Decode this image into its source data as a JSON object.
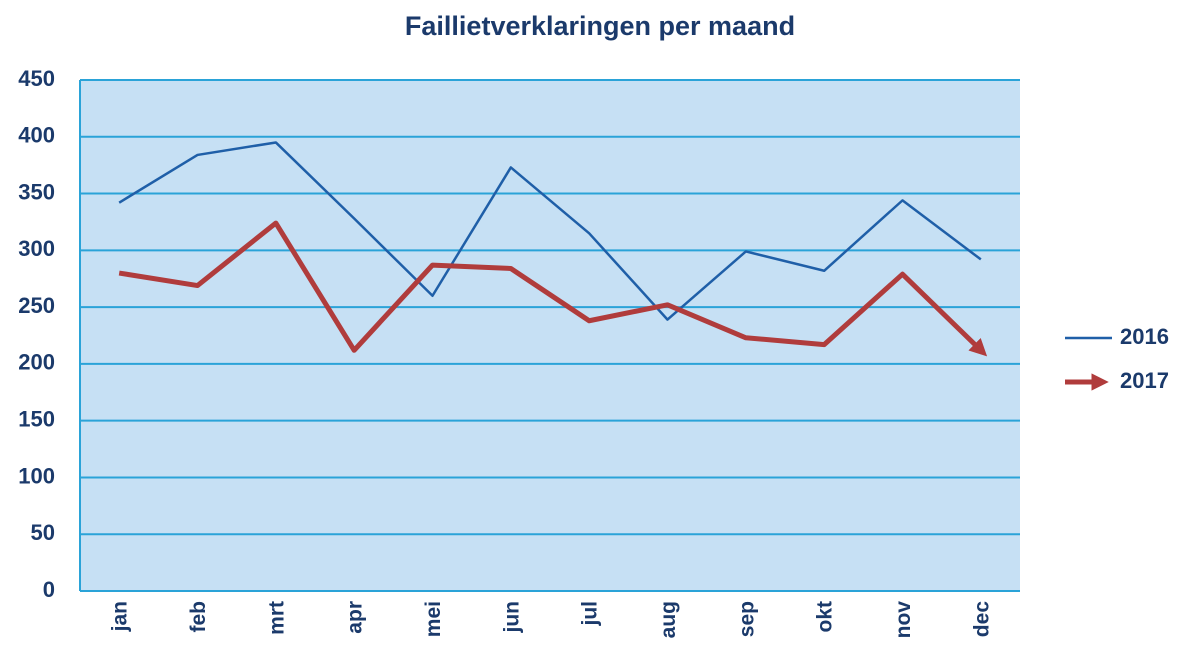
{
  "chart_data": {
    "type": "line",
    "title": "Faillietverklaringen per maand",
    "categories": [
      "jan",
      "feb",
      "mrt",
      "apr",
      "mei",
      "jun",
      "jul",
      "aug",
      "sep",
      "okt",
      "nov",
      "dec"
    ],
    "series": [
      {
        "name": "2016",
        "color": "#1f5fa8",
        "values": [
          342,
          384,
          395,
          328,
          260,
          373,
          315,
          239,
          299,
          282,
          344,
          292
        ]
      },
      {
        "name": "2017",
        "color": "#b03c3c",
        "values": [
          280,
          269,
          324,
          212,
          287,
          284,
          238,
          252,
          223,
          217,
          279,
          212
        ]
      }
    ],
    "ylim": [
      0,
      450
    ],
    "yticks": [
      0,
      50,
      100,
      150,
      200,
      250,
      300,
      350,
      400,
      450
    ],
    "grid": true,
    "legend": "right"
  }
}
